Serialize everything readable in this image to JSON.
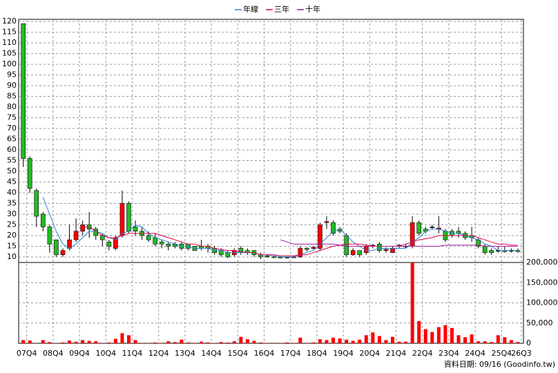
{
  "chart_data": {
    "type": "candlestick",
    "categories": [
      "07Q4",
      null,
      null,
      null,
      "08Q4",
      null,
      null,
      null,
      "09Q4",
      null,
      null,
      null,
      "10Q4",
      null,
      null,
      null,
      "11Q4",
      null,
      null,
      null,
      "12Q4",
      null,
      null,
      null,
      "13Q4",
      null,
      null,
      null,
      "14Q4",
      null,
      null,
      null,
      "15Q4",
      null,
      null,
      null,
      "16Q4",
      null,
      null,
      null,
      "17Q4",
      null,
      null,
      null,
      "18Q4",
      null,
      null,
      null,
      "19Q4",
      null,
      null,
      null,
      "20Q4",
      null,
      null,
      null,
      "21Q4",
      null,
      null,
      null,
      "22Q4",
      null,
      null,
      null,
      "23Q4",
      null,
      null,
      null,
      "24Q4",
      null,
      null,
      null,
      "25Q4",
      null,
      null,
      "26Q3"
    ],
    "open": [
      119,
      56,
      41,
      30,
      24,
      18,
      11,
      14,
      18,
      22,
      25,
      23,
      20,
      17,
      14,
      20,
      35,
      24,
      22,
      20,
      19,
      17,
      16,
      16,
      16,
      16,
      15,
      15,
      15,
      14,
      13,
      12,
      11,
      14,
      13,
      13,
      11,
      10.5,
      10,
      10,
      9.8,
      9.6,
      10,
      14,
      14,
      14,
      26,
      26,
      23,
      20,
      11,
      13,
      12,
      15,
      16,
      13,
      12,
      15,
      15,
      15,
      26,
      23,
      24,
      23,
      22,
      22,
      22,
      21,
      20,
      18,
      15,
      13,
      13,
      13,
      13,
      13
    ],
    "high": [
      119,
      57,
      42,
      31,
      25,
      18,
      14,
      25,
      28,
      27,
      31,
      24,
      21,
      18,
      20,
      41,
      36,
      27,
      24,
      22,
      21,
      18,
      17,
      17,
      17,
      16,
      15,
      18,
      16,
      15,
      14,
      13,
      14,
      15,
      14,
      13,
      12,
      11,
      10.5,
      10.5,
      10,
      10.5,
      15,
      14.5,
      15,
      26,
      29,
      27,
      24,
      21,
      14,
      13,
      16,
      16,
      17,
      14.5,
      15,
      16,
      16,
      29,
      27,
      24,
      25,
      29,
      23,
      23,
      24,
      22,
      24,
      19,
      16,
      14,
      15,
      15,
      14,
      14
    ],
    "low": [
      52,
      40,
      24,
      22,
      12,
      10,
      10,
      13,
      17,
      20,
      19,
      18,
      15,
      13,
      13,
      19,
      21,
      20,
      18,
      17,
      15,
      14,
      13,
      14,
      13,
      13,
      13,
      13,
      12,
      11,
      10,
      9.5,
      10,
      11,
      11,
      10,
      9,
      9.5,
      9.5,
      9.3,
      9.3,
      9.5,
      9.5,
      12.5,
      13.5,
      13,
      23,
      20,
      21,
      10,
      10.5,
      10,
      11,
      14,
      12,
      12,
      12,
      14,
      14,
      14,
      20,
      21,
      23,
      21,
      17,
      19,
      19,
      18,
      17,
      14,
      11,
      11,
      12,
      12,
      12,
      12
    ],
    "close": [
      56,
      42,
      29,
      24,
      16,
      11,
      13,
      18,
      22,
      25,
      23,
      20,
      18,
      15,
      19,
      35,
      22,
      22,
      20,
      18,
      16,
      16,
      15,
      15,
      14,
      14,
      13,
      14,
      14,
      12,
      11,
      10,
      13,
      12,
      12,
      11,
      10,
      10,
      9.8,
      9.5,
      9.5,
      10,
      14,
      13.5,
      14.5,
      25,
      26.5,
      21,
      22,
      11,
      13,
      11,
      15,
      15.5,
      13,
      13.5,
      14,
      15.5,
      15,
      26,
      21,
      22,
      24,
      23.5,
      18,
      20,
      21,
      19,
      19,
      15,
      12,
      12,
      13,
      12.5,
      13,
      12.5
    ],
    "volume": [
      8000,
      7000,
      1000,
      8000,
      3000,
      1000,
      2000,
      7000,
      4000,
      8000,
      6000,
      5000,
      1000,
      2000,
      11000,
      25000,
      20000,
      8000,
      1000,
      1000,
      2000,
      1000,
      5000,
      3000,
      9000,
      2000,
      1000,
      4000,
      2000,
      1000,
      3000,
      2000,
      5000,
      16000,
      10000,
      6000,
      2000,
      1000,
      500,
      1000,
      2000,
      1000,
      14000,
      1000,
      2000,
      10000,
      8000,
      14000,
      12000,
      9000,
      6000,
      9000,
      20000,
      27000,
      18000,
      8000,
      16000,
      4000,
      4000,
      200000,
      55000,
      35000,
      28000,
      40000,
      45000,
      38000,
      20000,
      15000,
      22000,
      5000,
      5000,
      3000,
      20000,
      15000,
      8000,
      3000
    ],
    "up_color": "#ff0000",
    "down_color": "#22bb22",
    "volume_color": "#ff0000",
    "series": [
      {
        "name": "年線",
        "color": "#2a7fd4",
        "values": [
          null,
          null,
          null,
          38,
          30,
          22,
          16,
          14,
          16,
          19,
          22,
          22,
          21,
          19,
          18,
          21,
          22,
          25,
          24,
          21,
          19,
          18,
          17,
          16,
          15,
          15,
          14,
          14,
          14,
          13,
          13,
          12,
          12,
          12,
          12,
          12,
          11,
          11,
          10.5,
          10,
          10,
          10,
          11,
          12,
          13,
          16,
          19,
          22,
          23,
          20,
          17,
          15,
          13,
          13,
          14,
          14,
          14,
          14,
          14,
          17,
          19,
          22,
          23,
          23,
          22,
          21,
          21,
          20,
          19,
          18,
          16,
          15,
          13,
          13,
          13,
          13
        ]
      },
      {
        "name": "三年",
        "color": "#e0004a",
        "values": [
          null,
          null,
          null,
          null,
          null,
          null,
          null,
          null,
          null,
          24,
          24,
          22,
          20,
          19,
          19,
          20,
          21,
          21,
          21,
          21,
          21,
          20,
          19,
          18,
          17,
          16,
          16,
          15,
          15,
          14,
          13.5,
          13,
          13,
          12.5,
          12,
          12,
          11,
          11,
          11,
          10.5,
          10.5,
          10.5,
          11,
          11,
          12,
          13,
          14,
          15,
          15.5,
          16,
          16,
          16,
          15.5,
          15,
          15,
          15,
          15,
          15,
          16,
          17,
          18,
          18.5,
          19,
          20,
          20,
          20,
          20,
          20,
          20,
          19,
          18,
          17,
          16,
          16,
          15.5,
          15.5
        ]
      },
      {
        "name": "十年",
        "color": "#9a1a9a",
        "values": [
          null,
          null,
          null,
          null,
          null,
          null,
          null,
          null,
          null,
          null,
          null,
          null,
          null,
          null,
          null,
          null,
          null,
          null,
          null,
          null,
          null,
          null,
          null,
          null,
          null,
          null,
          null,
          null,
          null,
          null,
          null,
          null,
          null,
          null,
          null,
          null,
          null,
          null,
          null,
          18,
          17,
          16,
          16,
          16,
          16,
          16,
          16,
          16,
          15.5,
          15,
          15,
          15,
          15,
          15,
          15,
          15,
          15,
          15,
          15,
          15,
          15,
          15,
          15,
          15,
          15.5,
          15.5,
          15.5,
          15.5,
          15.5,
          15.5,
          15,
          15,
          15,
          15,
          15,
          15
        ]
      }
    ],
    "ylim": [
      7.4,
      121
    ],
    "yticks": [
      10,
      15,
      20,
      25,
      30,
      35,
      40,
      45,
      50,
      55,
      60,
      65,
      70,
      75,
      80,
      85,
      90,
      95,
      100,
      105,
      110,
      115,
      120
    ],
    "volume_ylim": [
      0,
      200000
    ],
    "volume_yticks": [
      0,
      {
        "value": 50000,
        "label": "50,000"
      },
      {
        "value": 100000,
        "label": "100,000"
      },
      {
        "value": 150000,
        "label": "150,000"
      },
      {
        "value": 200000,
        "label": "200,000"
      }
    ],
    "grid": true,
    "footer": "資料日期: 09/16 (Goodinfo.tw)"
  }
}
